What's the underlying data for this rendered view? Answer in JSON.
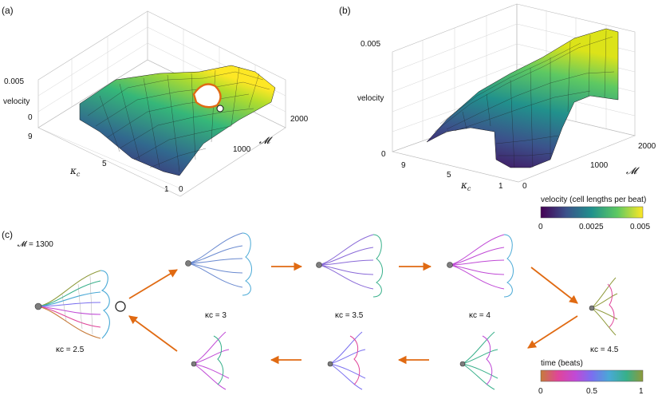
{
  "panels": {
    "a": "(a)",
    "b": "(b)",
    "c": "(c)"
  },
  "chart_data": [
    {
      "type": "surface3d",
      "panel": "(a)",
      "zlabel": "velocity",
      "xlabel": "κ_c",
      "ylabel": "𝓜",
      "z_ticks": [
        "0.005",
        "0"
      ],
      "x_ticks": [
        "9",
        "5",
        "1"
      ],
      "y_ticks": [
        "2000",
        "1000",
        "0"
      ],
      "xlim": [
        1,
        10
      ],
      "ylim": [
        0,
        2000
      ],
      "zlim": [
        0,
        0.005
      ],
      "highlight": {
        "kappa_c": 2.5,
        "M": 1300
      }
    },
    {
      "type": "surface3d",
      "panel": "(b)",
      "zlabel": "velocity",
      "xlabel": "κ_c",
      "ylabel": "𝓜",
      "z_ticks": [
        "0.005",
        "0"
      ],
      "x_ticks": [
        "9",
        "5",
        "1"
      ],
      "y_ticks": [
        "2000",
        "1000",
        "0"
      ],
      "xlim": [
        1,
        10
      ],
      "ylim": [
        0,
        2000
      ],
      "zlim": [
        0,
        0.005
      ]
    }
  ],
  "colorbar": {
    "label": "velocity (cell lengths per beat)",
    "ticks": [
      "0",
      "0.0025",
      "0.005"
    ],
    "colors": [
      "#440154",
      "#3b528b",
      "#21918c",
      "#5ec962",
      "#fde725"
    ]
  },
  "panel_c": {
    "header": "𝓜 = 1300",
    "snapshots": [
      {
        "label": "κc = 2.5",
        "kappa_c": 2.5
      },
      {
        "label": "κc = 3",
        "kappa_c": 3
      },
      {
        "label": "κc = 3.5",
        "kappa_c": 3.5
      },
      {
        "label": "κc = 4",
        "kappa_c": 4
      },
      {
        "label": "κc = 4.5",
        "kappa_c": 4.5
      }
    ],
    "time_colorbar": {
      "label": "time (beats)",
      "ticks": [
        "0",
        "0.5",
        "1"
      ],
      "colors": [
        "#c77b3a",
        "#e0459a",
        "#c04ad6",
        "#7a6ff0",
        "#49a9d6",
        "#37b08a",
        "#8e9a3a"
      ]
    },
    "arrow_color": "#e06a12"
  }
}
